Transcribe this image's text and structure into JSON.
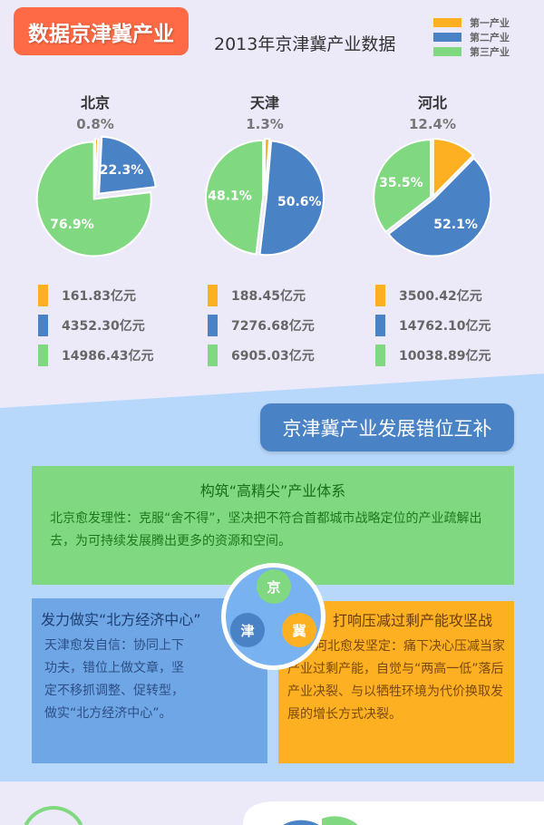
{
  "header": {
    "badge": "数据京津冀产业",
    "title": "2013年京津冀产业数据"
  },
  "legend": [
    {
      "label": "第一产业",
      "color": "#fdb021"
    },
    {
      "label": "第二产业",
      "color": "#4a82c6"
    },
    {
      "label": "第三产业",
      "color": "#80d880"
    }
  ],
  "chart_data": {
    "type": "pie",
    "title": "2013年京津冀产业数据",
    "series_names": [
      "第一产业",
      "第二产业",
      "第三产业"
    ],
    "pies": [
      {
        "name": "北京",
        "percents": [
          0.8,
          22.3,
          76.9
        ],
        "labels": [
          "0.8%",
          "22.3%",
          "76.9%"
        ],
        "values": [
          "161.83亿元",
          "4352.30亿元",
          "14986.43亿元"
        ]
      },
      {
        "name": "天津",
        "percents": [
          1.3,
          50.6,
          48.1
        ],
        "labels": [
          "1.3%",
          "50.6%",
          "48.1%"
        ],
        "values": [
          "188.45亿元",
          "7276.68亿元",
          "6905.03亿元"
        ]
      },
      {
        "name": "河北",
        "percents": [
          12.4,
          52.1,
          35.5
        ],
        "labels": [
          "12.4%",
          "52.1%",
          "35.5%"
        ],
        "values": [
          "3500.42亿元",
          "14762.10亿元",
          "10038.89亿元"
        ]
      }
    ]
  },
  "section2": {
    "title": "京津冀产业发展错位互补",
    "beijing": {
      "title": "构筑“高精尖”产业体系",
      "text": "北京愈发理性：克服“舍不得”，坚决把不符合首都城市战略定位的产业疏解出去，为可持续发展腾出更多的资源和空间。"
    },
    "tianjin": {
      "title": "发力做实“北方经济中心”",
      "text": "天津愈发自信：协同上下功夫，错位上做文章，坚定不移抓调整、促转型，做实“北方经济中心”。"
    },
    "hebei": {
      "title": "打响压减过剩产能攻坚战",
      "text": "河北愈发坚定：痛下决心压减当家产业过剩产能，自觉与“两高一低”落后产业决裂、与以牺牲环境为代价换取发展的增长方式决裂。"
    },
    "hub": {
      "jing": "京",
      "jin": "津",
      "ji": "冀"
    }
  }
}
